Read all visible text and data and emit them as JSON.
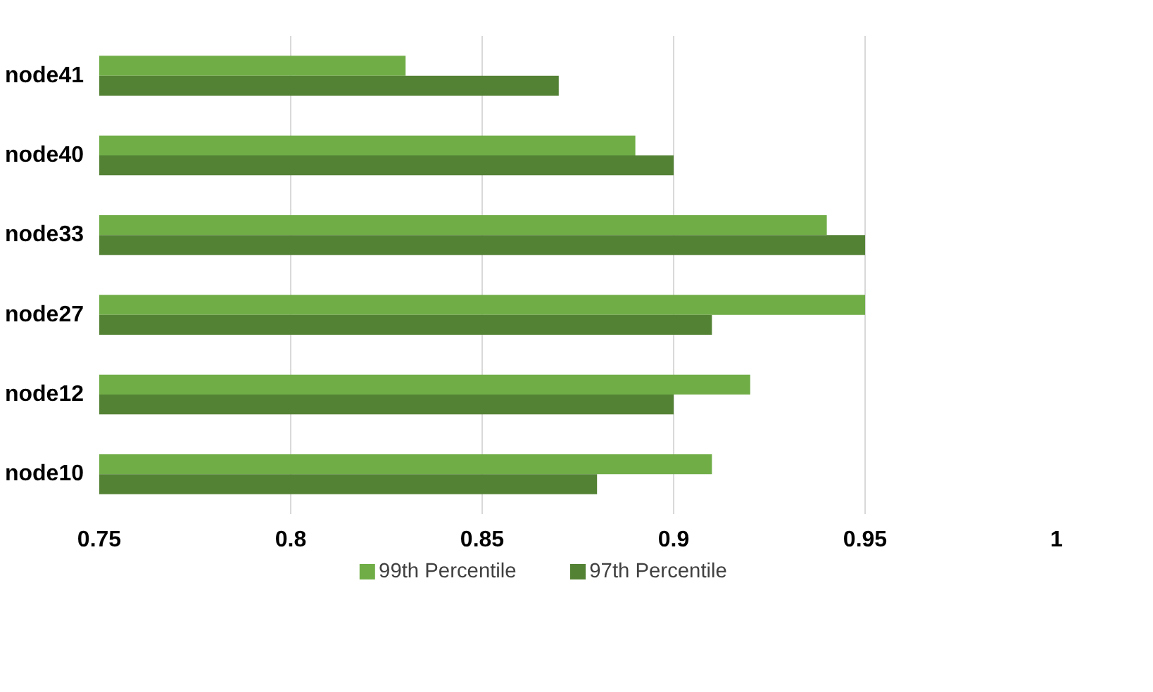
{
  "chart_data": {
    "type": "bar",
    "orientation": "horizontal",
    "categories": [
      "node41",
      "node40",
      "node33",
      "node27",
      "node12",
      "node10"
    ],
    "series": [
      {
        "name": "99th Percentile",
        "color": "#70ad47",
        "values": [
          0.83,
          0.89,
          0.94,
          0.95,
          0.92,
          0.91
        ]
      },
      {
        "name": "97th Percentile",
        "color": "#548235",
        "values": [
          0.87,
          0.9,
          0.95,
          0.91,
          0.9,
          0.88
        ]
      }
    ],
    "xlim": [
      0.75,
      1
    ],
    "xticks": [
      0.75,
      0.8,
      0.85,
      0.9,
      0.95,
      1
    ],
    "grid": "x",
    "legend": "bottom"
  }
}
